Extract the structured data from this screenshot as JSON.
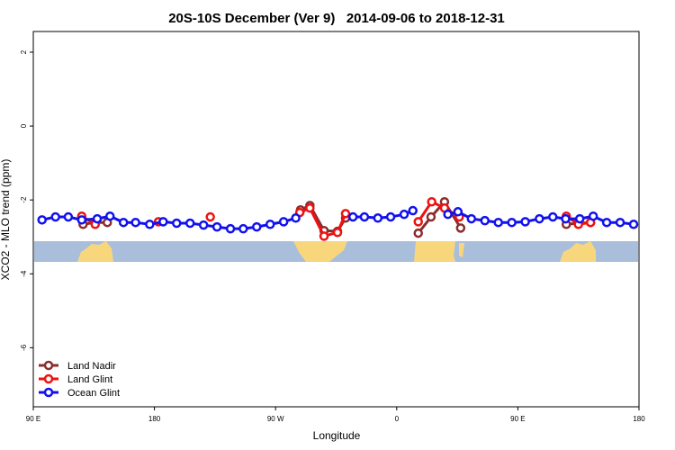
{
  "chart_data": {
    "type": "line",
    "title": "20S-10S December (Ver 9)   2014-09-06 to 2018-12-31",
    "x_label": "Longitude",
    "y_label": "XCO2 - MLO trend (ppm)",
    "xlim": [
      90,
      540
    ],
    "ylim": [
      -7.6,
      2.56
    ],
    "xticks": [
      {
        "value": 90,
        "label": "90 E"
      },
      {
        "value": 180,
        "label": "180"
      },
      {
        "value": 270,
        "label": "90 W"
      },
      {
        "value": 360,
        "label": "0"
      },
      {
        "value": 450,
        "label": "90 E"
      },
      {
        "value": 540,
        "label": "180"
      }
    ],
    "yticks": [
      -6,
      -4,
      -2,
      0,
      2
    ],
    "legend": "bottomleft",
    "series": [
      {
        "name": "Land Nadir",
        "color": "#8b2d2d",
        "x": [
          127,
          136,
          145,
          null,
          288.5,
          295.5,
          306,
          316,
          322,
          null,
          376,
          385.5,
          395.5,
          407.5,
          null,
          486,
          495,
          504
        ],
        "values": [
          -2.66,
          -2.61,
          -2.61,
          null,
          -2.27,
          -2.15,
          -2.83,
          -2.85,
          -2.49,
          null,
          -2.9,
          -2.46,
          -2.05,
          -2.76,
          null,
          -2.66,
          -2.63,
          -2.61
        ]
      },
      {
        "name": "Land Glint",
        "color": "#ee1111",
        "x": [
          126,
          136,
          null,
          183,
          null,
          221.5,
          null,
          288,
          295.5,
          306,
          316,
          322,
          null,
          376,
          386,
          395.5,
          406.5,
          null,
          486,
          495,
          504
        ],
        "values": [
          -2.44,
          -2.66,
          null,
          -2.59,
          null,
          -2.46,
          null,
          -2.34,
          -2.22,
          -2.98,
          -2.88,
          -2.37,
          null,
          -2.59,
          -2.05,
          -2.22,
          -2.46,
          null,
          -2.44,
          -2.66,
          -2.61
        ]
      },
      {
        "name": "Ocean Glint",
        "color": "#1111ee",
        "x": [
          96.5,
          106.5,
          116,
          126,
          137.5,
          147,
          157,
          166,
          176.5,
          186.5,
          196.5,
          206.5,
          216.5,
          226.5,
          236.5,
          246,
          256,
          266,
          276,
          285,
          null,
          327.5,
          336,
          346,
          355.5,
          365.5,
          372,
          null,
          398,
          405.5,
          415.5,
          425.5,
          435.5,
          445.5,
          455.5,
          466,
          476,
          485.5,
          496,
          506,
          516,
          526,
          536
        ],
        "values": [
          -2.54,
          -2.46,
          -2.46,
          -2.54,
          -2.51,
          -2.44,
          -2.61,
          -2.61,
          -2.66,
          -2.59,
          -2.63,
          -2.63,
          -2.68,
          -2.73,
          -2.78,
          -2.78,
          -2.73,
          -2.66,
          -2.59,
          -2.49,
          null,
          -2.46,
          -2.46,
          -2.49,
          -2.46,
          -2.39,
          -2.29,
          null,
          -2.39,
          -2.32,
          -2.51,
          -2.56,
          -2.61,
          -2.61,
          -2.59,
          -2.51,
          -2.46,
          -2.51,
          -2.51,
          -2.44,
          -2.61,
          -2.61,
          -2.66
        ]
      }
    ]
  }
}
